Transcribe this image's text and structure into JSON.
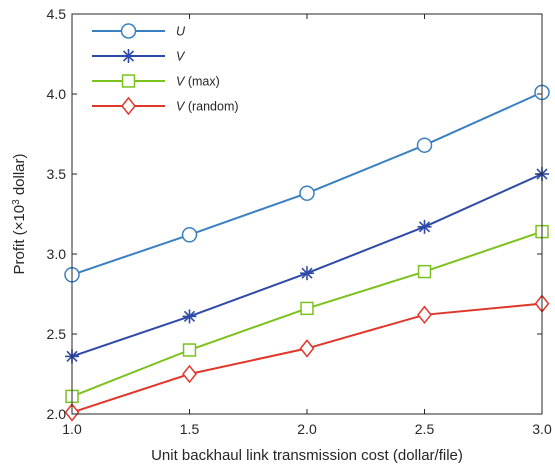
{
  "chart_data": {
    "type": "line",
    "x": [
      1.0,
      1.5,
      2.0,
      2.5,
      3.0
    ],
    "xlabel": "Unit backhaul link transmission cost (dollar/file)",
    "ylabel_prefix": "Profit (×10",
    "ylabel_exponent": "3",
    "ylabel_suffix": " dollar)",
    "xlim": [
      1.0,
      3.0
    ],
    "ylim": [
      2.0,
      4.5
    ],
    "xticks": [
      "1.0",
      "1.5",
      "2.0",
      "2.5",
      "3.0"
    ],
    "yticks": [
      "2.0",
      "2.5",
      "3.0",
      "3.5",
      "4.0",
      "4.5"
    ],
    "grid": false,
    "legend_position": "top-left",
    "series": [
      {
        "name": "U",
        "name_suffix": "",
        "color": "#3a7fc1",
        "marker": "circle",
        "values": [
          2.87,
          3.12,
          3.38,
          3.68,
          4.01
        ]
      },
      {
        "name": "V",
        "name_suffix": "",
        "color": "#2e4aa8",
        "marker": "asterisk",
        "values": [
          2.36,
          2.61,
          2.88,
          3.17,
          3.5
        ]
      },
      {
        "name": "V",
        "name_suffix": " (max)",
        "color": "#7cc21e",
        "marker": "square",
        "values": [
          2.11,
          2.4,
          2.66,
          2.89,
          3.14
        ]
      },
      {
        "name": "V",
        "name_suffix": " (random)",
        "color": "#e0372a",
        "marker": "diamond",
        "values": [
          2.01,
          2.25,
          2.41,
          2.62,
          2.69
        ]
      }
    ]
  }
}
